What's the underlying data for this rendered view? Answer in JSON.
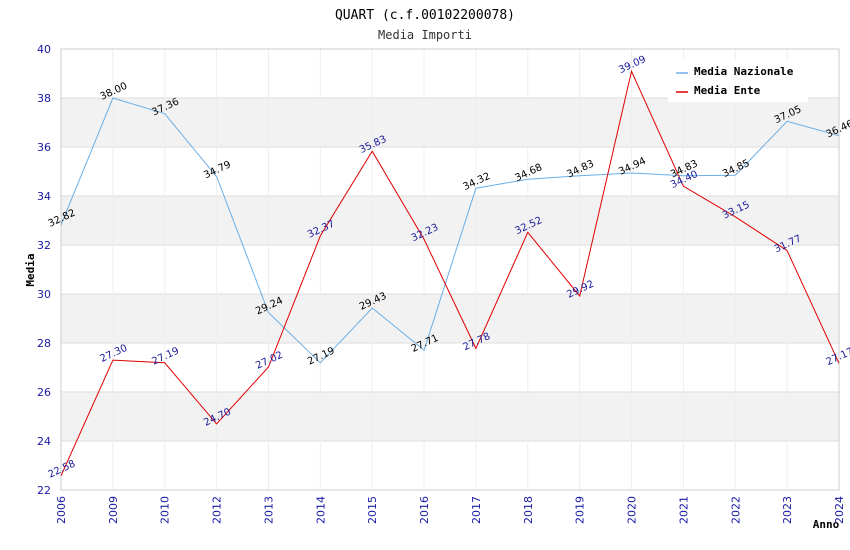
{
  "chart_data": {
    "type": "line",
    "title": "QUART (c.f.00102200078)",
    "subtitle": "Media Importi",
    "xlabel": "Anno",
    "ylabel": "Media",
    "ylim": [
      22,
      40
    ],
    "yticks": [
      "22",
      "24",
      "26",
      "28",
      "30",
      "32",
      "34",
      "36",
      "38",
      "40"
    ],
    "categories": [
      "2006",
      "2009",
      "2010",
      "2012",
      "2013",
      "2014",
      "2015",
      "2016",
      "2017",
      "2018",
      "2019",
      "2020",
      "2021",
      "2022",
      "2023",
      "2024"
    ],
    "series": [
      {
        "name": "Media Nazionale",
        "color": "#6aaee6",
        "label_color": "#000000",
        "values": [
          32.82,
          38.0,
          37.36,
          34.79,
          29.24,
          27.19,
          29.43,
          27.71,
          34.32,
          34.68,
          34.83,
          34.94,
          34.83,
          34.85,
          37.05,
          36.46
        ],
        "labels": [
          "32.82",
          "38.00",
          "37.36",
          "34.79",
          "29.24",
          "27.19",
          "29.43",
          "27.71",
          "34.32",
          "34.68",
          "34.83",
          "34.94",
          "34.83",
          "34.85",
          "37.05",
          "36.46"
        ]
      },
      {
        "name": "Media Ente",
        "color": "#e00000",
        "label_color": "#1a1a99",
        "values": [
          22.58,
          27.3,
          27.19,
          24.7,
          27.02,
          32.37,
          35.83,
          32.23,
          27.78,
          32.52,
          29.92,
          39.09,
          34.4,
          33.15,
          31.77,
          27.17
        ],
        "labels": [
          "22.58",
          "27.30",
          "27.19",
          "24.70",
          "27.02",
          "32.37",
          "35.83",
          "32.23",
          "27.78",
          "32.52",
          "29.92",
          "39.09",
          "34.40",
          "33.15",
          "31.77",
          "27.17"
        ]
      }
    ],
    "legend_position": "top-right",
    "grid": true
  }
}
